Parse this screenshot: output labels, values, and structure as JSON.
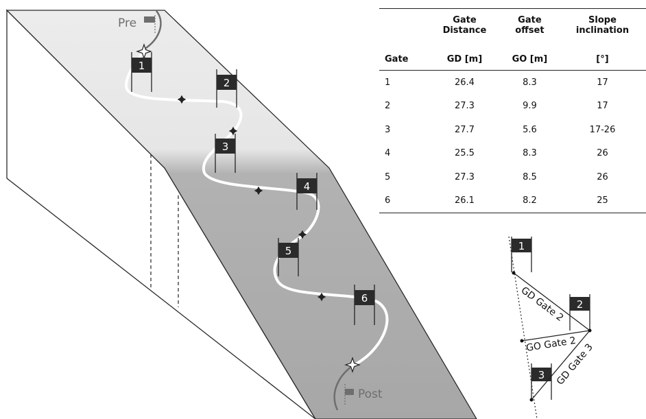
{
  "diagram": {
    "start_label": "Pre",
    "finish_label": "Post",
    "gates": [
      "1",
      "2",
      "3",
      "4",
      "5",
      "6"
    ]
  },
  "table": {
    "columns": [
      {
        "line1": "",
        "line2": "",
        "unit": "Gate"
      },
      {
        "line1": "Gate",
        "line2": "Distance",
        "unit": "GD [m]"
      },
      {
        "line1": "Gate",
        "line2": "offset",
        "unit": "GO [m]"
      },
      {
        "line1": "Slope",
        "line2": "inclination",
        "unit": "[°]"
      }
    ],
    "rows": [
      [
        "1",
        "26.4",
        "8.3",
        "17"
      ],
      [
        "2",
        "27.3",
        "9.9",
        "17"
      ],
      [
        "3",
        "27.7",
        "5.6",
        "17-26"
      ],
      [
        "4",
        "25.5",
        "8.3",
        "26"
      ],
      [
        "5",
        "27.3",
        "8.5",
        "26"
      ],
      [
        "6",
        "26.1",
        "8.2",
        "25"
      ]
    ]
  },
  "inset": {
    "gates": [
      "1",
      "2",
      "3"
    ],
    "gd_label": "GD Gate 2",
    "go_label": "GO Gate 2",
    "gd3_label": "GD Gate 3"
  },
  "colors": {
    "slope_upper": "#ececec",
    "slope_lower": "#a9a9a9",
    "side_face": "#ffffff",
    "course_line": "#ffffff",
    "gate_box": "#2b2b2b",
    "gate_text": "#ffffff",
    "table_text": "#111111"
  }
}
